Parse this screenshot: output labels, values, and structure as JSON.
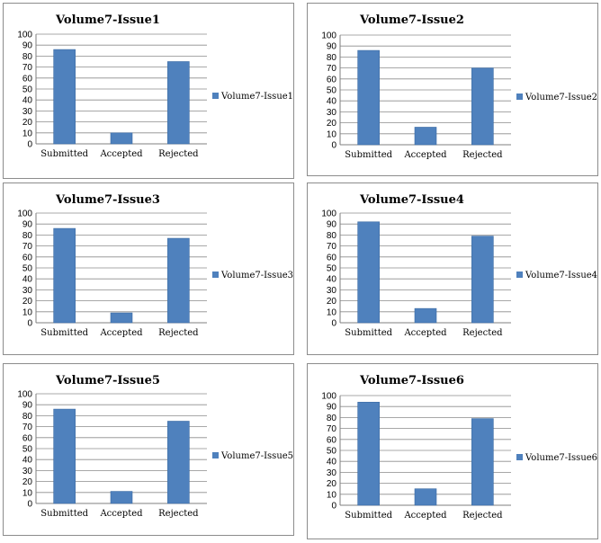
{
  "colors": {
    "bar": "#4f81bd",
    "bar_edge": "#3a6aa3",
    "grid": "#8c8c8c",
    "axis": "#7f7f7f"
  },
  "chart_data": [
    {
      "type": "bar",
      "title": "Volume7-Issue1",
      "categories": [
        "Submitted",
        "Accepted",
        "Rejected"
      ],
      "series": [
        {
          "name": "Volume7-Issue1",
          "values": [
            86,
            10,
            75
          ]
        }
      ],
      "ylim": [
        0,
        100
      ],
      "yticks": [
        "0",
        "10",
        "20",
        "30",
        "40",
        "50",
        "60",
        "70",
        "80",
        "90",
        "100"
      ],
      "grid": true,
      "legend": "right"
    },
    {
      "type": "bar",
      "title": "Volume7-Issue2",
      "categories": [
        "Submitted",
        "Accepted",
        "Rejected"
      ],
      "series": [
        {
          "name": "Volume7-Issue2",
          "values": [
            86,
            16,
            70
          ]
        }
      ],
      "ylim": [
        0,
        100
      ],
      "yticks": [
        "0",
        "10",
        "20",
        "30",
        "40",
        "50",
        "60",
        "70",
        "80",
        "90",
        "100"
      ],
      "grid": true,
      "legend": "right"
    },
    {
      "type": "bar",
      "title": "Volume7-Issue3",
      "categories": [
        "Submitted",
        "Accepted",
        "Rejected"
      ],
      "series": [
        {
          "name": "Volume7-Issue3",
          "values": [
            86,
            9,
            77
          ]
        }
      ],
      "ylim": [
        0,
        100
      ],
      "yticks": [
        "0",
        "10",
        "20",
        "30",
        "40",
        "50",
        "60",
        "70",
        "80",
        "90",
        "100"
      ],
      "grid": true,
      "legend": "right"
    },
    {
      "type": "bar",
      "title": "Volume7-Issue4",
      "categories": [
        "Submitted",
        "Accepted",
        "Rejected"
      ],
      "series": [
        {
          "name": "Volume7-Issue4",
          "values": [
            92,
            13,
            79
          ]
        }
      ],
      "ylim": [
        0,
        100
      ],
      "yticks": [
        "0",
        "10",
        "20",
        "30",
        "40",
        "50",
        "60",
        "70",
        "80",
        "90",
        "100"
      ],
      "grid": true,
      "legend": "right"
    },
    {
      "type": "bar",
      "title": "Volume7-Issue5",
      "categories": [
        "Submitted",
        "Accepted",
        "Rejected"
      ],
      "series": [
        {
          "name": "Volume7-Issue5",
          "values": [
            86,
            11,
            75
          ]
        }
      ],
      "ylim": [
        0,
        100
      ],
      "yticks": [
        "0",
        "10",
        "20",
        "30",
        "40",
        "50",
        "60",
        "70",
        "80",
        "90",
        "100"
      ],
      "grid": true,
      "legend": "right"
    },
    {
      "type": "bar",
      "title": "Volume7-Issue6",
      "categories": [
        "Submitted",
        "Accepted",
        "Rejected"
      ],
      "series": [
        {
          "name": "Volume7-Issue6",
          "values": [
            94,
            15,
            79
          ]
        }
      ],
      "ylim": [
        0,
        100
      ],
      "yticks": [
        "0",
        "10",
        "20",
        "30",
        "40",
        "50",
        "60",
        "70",
        "80",
        "90",
        "100"
      ],
      "grid": true,
      "legend": "right"
    }
  ]
}
